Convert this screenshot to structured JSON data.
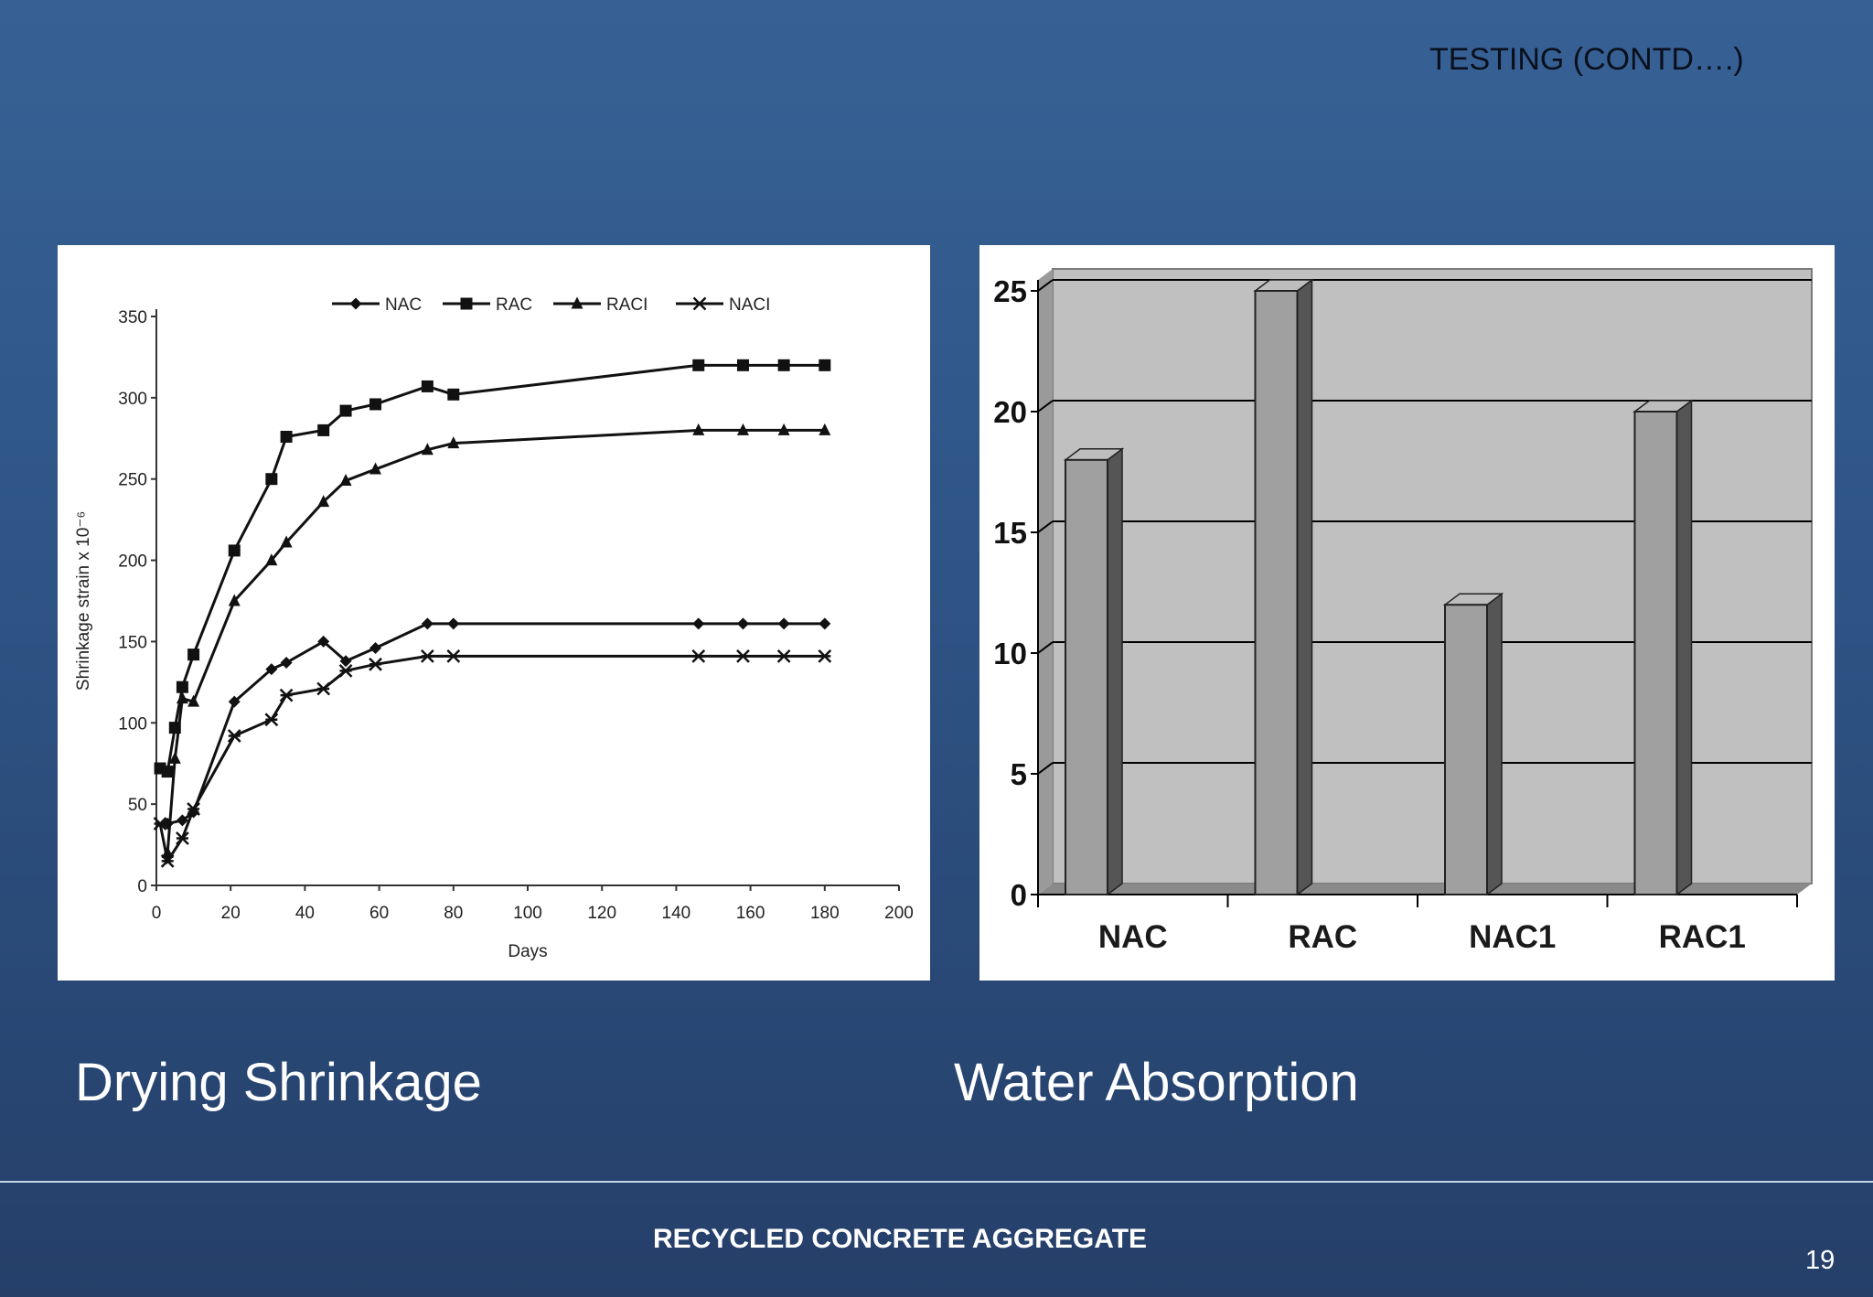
{
  "slide": {
    "title": "TESTING (CONTD….)",
    "caption_left": "Drying Shrinkage",
    "caption_right": "Water Absorption",
    "footer": "RECYCLED CONCRETE AGGREGATE",
    "page_number": "19"
  },
  "colors": {
    "background_top": "#376195",
    "background_bottom": "#253f69",
    "line_series": "#111111",
    "bar_face": "#a0a0a0",
    "bar_side": "#555555",
    "plot_back": "#c0c0c0"
  },
  "chart_data": [
    {
      "type": "line",
      "title": "",
      "xlabel": "Days",
      "ylabel": "Shrinkage strain x 10⁻⁶",
      "xlim": [
        0,
        200
      ],
      "ylim": [
        0,
        350
      ],
      "xticks": [
        0,
        20,
        40,
        60,
        80,
        100,
        120,
        140,
        160,
        180,
        200
      ],
      "yticks": [
        0,
        50,
        100,
        150,
        200,
        250,
        300,
        350
      ],
      "legend": "top",
      "grid": false,
      "series": [
        {
          "name": "NAC",
          "marker": "diamond",
          "x": [
            3,
            7,
            10,
            21,
            31,
            35,
            45,
            51,
            59,
            73,
            80,
            146,
            158,
            169,
            180
          ],
          "y": [
            38,
            40,
            45,
            113,
            133,
            137,
            150,
            138,
            146,
            161,
            161,
            161,
            161,
            161,
            161
          ]
        },
        {
          "name": "RAC",
          "marker": "square",
          "x": [
            1,
            3,
            5,
            7,
            10,
            21,
            31,
            35,
            45,
            51,
            59,
            73,
            80,
            146,
            158,
            169,
            180
          ],
          "y": [
            72,
            70,
            97,
            122,
            142,
            206,
            250,
            276,
            280,
            292,
            296,
            307,
            302,
            320,
            320,
            320,
            320
          ]
        },
        {
          "name": "RACI",
          "marker": "triangle",
          "x": [
            3,
            5,
            7,
            10,
            21,
            31,
            35,
            45,
            51,
            59,
            73,
            80,
            146,
            158,
            169,
            180
          ],
          "y": [
            20,
            78,
            115,
            113,
            175,
            200,
            211,
            236,
            249,
            256,
            268,
            272,
            280,
            280,
            280,
            280
          ]
        },
        {
          "name": "NACI",
          "marker": "cross",
          "x": [
            1,
            3,
            7,
            10,
            21,
            31,
            35,
            45,
            51,
            59,
            73,
            80,
            146,
            158,
            169,
            180
          ],
          "y": [
            38,
            15,
            29,
            47,
            92,
            102,
            117,
            121,
            132,
            136,
            141,
            141,
            141,
            141,
            141,
            141
          ]
        }
      ]
    },
    {
      "type": "bar",
      "title": "",
      "categories": [
        "NAC",
        "RAC",
        "NAC1",
        "RAC1"
      ],
      "values": [
        18,
        25,
        12,
        20
      ],
      "ylim": [
        0,
        25
      ],
      "yticks": [
        0,
        5,
        10,
        15,
        20,
        25
      ],
      "grid": true,
      "style": "3d"
    }
  ]
}
